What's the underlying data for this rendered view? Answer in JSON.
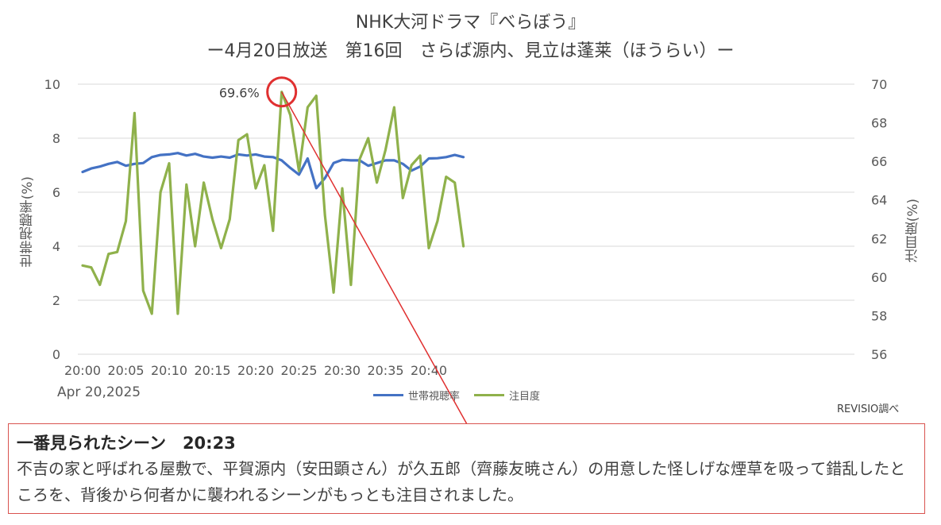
{
  "header": {
    "title": "NHK大河ドラマ『べらぼう』",
    "subtitle": "ー4月20日放送　第16回　さらば源内、見立は蓬莱（ほうらい）ー"
  },
  "footer": {
    "date_label": "Apr 20,2025",
    "source": "REVISIO調べ"
  },
  "callout": {
    "heading": "一番見られたシーン　20:23",
    "body": "不吉の家と呼ばれる屋敷で、平賀源内（安田顕さん）が久五郎（齊藤友暁さん）の用意した怪しげな煙草を吸って錯乱したところを、背後から何者かに襲われるシーンがもっとも注目されました。"
  },
  "colors": {
    "rating_series": "#4472c4",
    "attention_series": "#8fb14b",
    "highlight": "#e03030"
  },
  "chart_data": {
    "type": "line",
    "xlabel": "",
    "ylabel": "世帯視聴率(%)",
    "ylabel_right": "注目度(%)",
    "ylim": [
      0,
      10
    ],
    "ylim_right": [
      56,
      70
    ],
    "yticks": [
      0,
      2,
      4,
      6,
      8,
      10
    ],
    "yticks_right": [
      56,
      58,
      60,
      62,
      64,
      66,
      68,
      70
    ],
    "x": [
      "20:00",
      "20:01",
      "20:02",
      "20:03",
      "20:04",
      "20:05",
      "20:06",
      "20:07",
      "20:08",
      "20:09",
      "20:10",
      "20:11",
      "20:12",
      "20:13",
      "20:14",
      "20:15",
      "20:16",
      "20:17",
      "20:18",
      "20:19",
      "20:20",
      "20:21",
      "20:22",
      "20:23",
      "20:24",
      "20:25",
      "20:26",
      "20:27",
      "20:28",
      "20:29",
      "20:30",
      "20:31",
      "20:32",
      "20:33",
      "20:34",
      "20:35",
      "20:36",
      "20:37",
      "20:38",
      "20:39",
      "20:40",
      "20:41",
      "20:42",
      "20:43",
      "20:44"
    ],
    "xtick_labels": [
      "20:00",
      "20:05",
      "20:10",
      "20:15",
      "20:20",
      "20:25",
      "20:30",
      "20:35",
      "20:40"
    ],
    "grid": true,
    "legend_position": "bottom",
    "series": [
      {
        "name": "世帯視聴率",
        "axis": "left",
        "values": [
          6.75,
          6.88,
          6.95,
          7.05,
          7.12,
          6.98,
          7.05,
          7.08,
          7.3,
          7.38,
          7.4,
          7.45,
          7.36,
          7.42,
          7.32,
          7.28,
          7.32,
          7.28,
          7.4,
          7.36,
          7.4,
          7.32,
          7.3,
          7.18,
          6.9,
          6.65,
          7.25,
          6.15,
          6.52,
          7.08,
          7.2,
          7.18,
          7.18,
          6.98,
          7.08,
          7.18,
          7.18,
          7.05,
          6.8,
          6.95,
          7.25,
          7.26,
          7.3,
          7.38,
          7.3
        ]
      },
      {
        "name": "注目度",
        "axis": "right",
        "values": [
          60.6,
          60.5,
          59.6,
          61.2,
          61.3,
          62.9,
          68.5,
          59.3,
          58.1,
          64.4,
          65.9,
          58.1,
          64.8,
          61.6,
          64.9,
          63.0,
          61.5,
          63.0,
          67.1,
          67.4,
          64.6,
          65.8,
          62.4,
          69.6,
          68.4,
          65.5,
          68.8,
          69.4,
          63.2,
          59.2,
          64.6,
          59.6,
          66.1,
          67.2,
          64.9,
          66.6,
          68.8,
          64.1,
          65.8,
          66.3,
          61.5,
          62.9,
          65.2,
          64.9,
          61.6
        ]
      }
    ],
    "annotations": [
      {
        "x": "20:23",
        "series": "注目度",
        "value": 69.6,
        "label": "69.6%"
      }
    ]
  }
}
